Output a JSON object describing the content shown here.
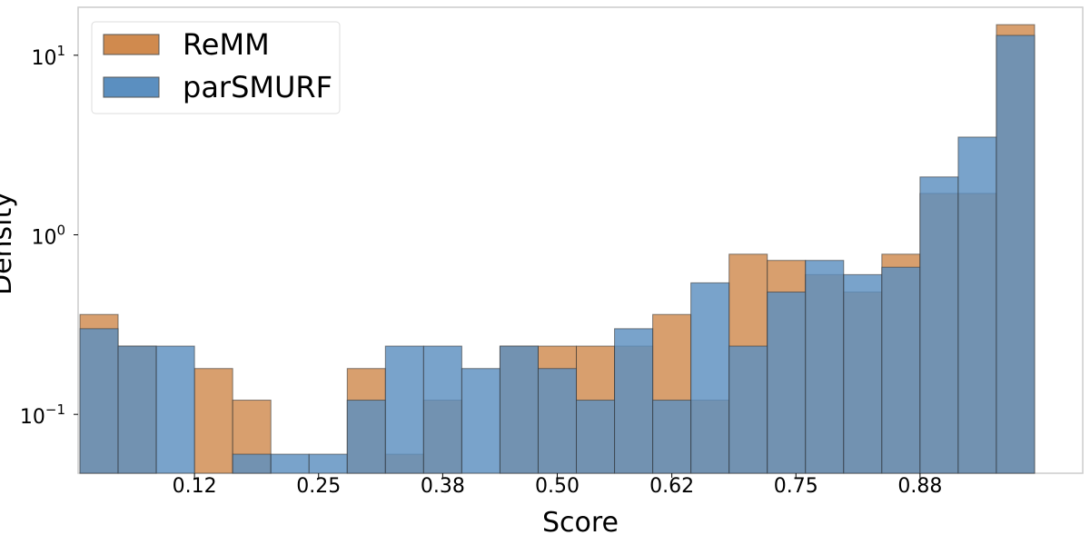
{
  "chart_data": {
    "type": "bar",
    "subtype": "overlaid-histogram",
    "xlabel": "Score",
    "ylabel": "Density",
    "y_scale": "log",
    "xlim": [
      0.0,
      1.0
    ],
    "ylim": [
      0.047,
      18.5
    ],
    "x_tick_values": [
      0.12,
      0.25,
      0.38,
      0.5,
      0.62,
      0.75,
      0.88
    ],
    "x_tick_labels": [
      "0.12",
      "0.25",
      "0.38",
      "0.50",
      "0.62",
      "0.75",
      "0.88"
    ],
    "y_tick_values": [
      0.1,
      1,
      10
    ],
    "y_tick_labels": [
      {
        "base": "10",
        "exp": "−1"
      },
      {
        "base": "10",
        "exp": "0"
      },
      {
        "base": "10",
        "exp": "1"
      }
    ],
    "bin_edges": [
      0.0,
      0.04,
      0.08,
      0.12,
      0.16,
      0.2,
      0.24,
      0.28,
      0.32,
      0.36,
      0.4,
      0.44,
      0.48,
      0.52,
      0.56,
      0.6,
      0.64,
      0.68,
      0.72,
      0.76,
      0.8,
      0.84,
      0.88,
      0.92,
      0.96,
      1.0
    ],
    "legend_position": "upper-left",
    "grid": false,
    "series": [
      {
        "name": "ReMM",
        "color": "#d08a4e",
        "values": [
          0.36,
          0.24,
          0.0,
          0.18,
          0.12,
          0.0,
          0.0,
          0.18,
          0.06,
          0.12,
          0.0,
          0.24,
          0.24,
          0.24,
          0.24,
          0.36,
          0.12,
          0.78,
          0.72,
          0.6,
          0.48,
          0.78,
          1.7,
          1.7,
          14.8
        ]
      },
      {
        "name": "parSMURF",
        "color": "#5b8fc0",
        "values": [
          0.3,
          0.24,
          0.24,
          0.0,
          0.06,
          0.06,
          0.06,
          0.12,
          0.24,
          0.24,
          0.18,
          0.24,
          0.18,
          0.12,
          0.3,
          0.12,
          0.54,
          0.24,
          0.48,
          0.72,
          0.6,
          0.66,
          2.1,
          3.5,
          12.9
        ]
      }
    ]
  }
}
